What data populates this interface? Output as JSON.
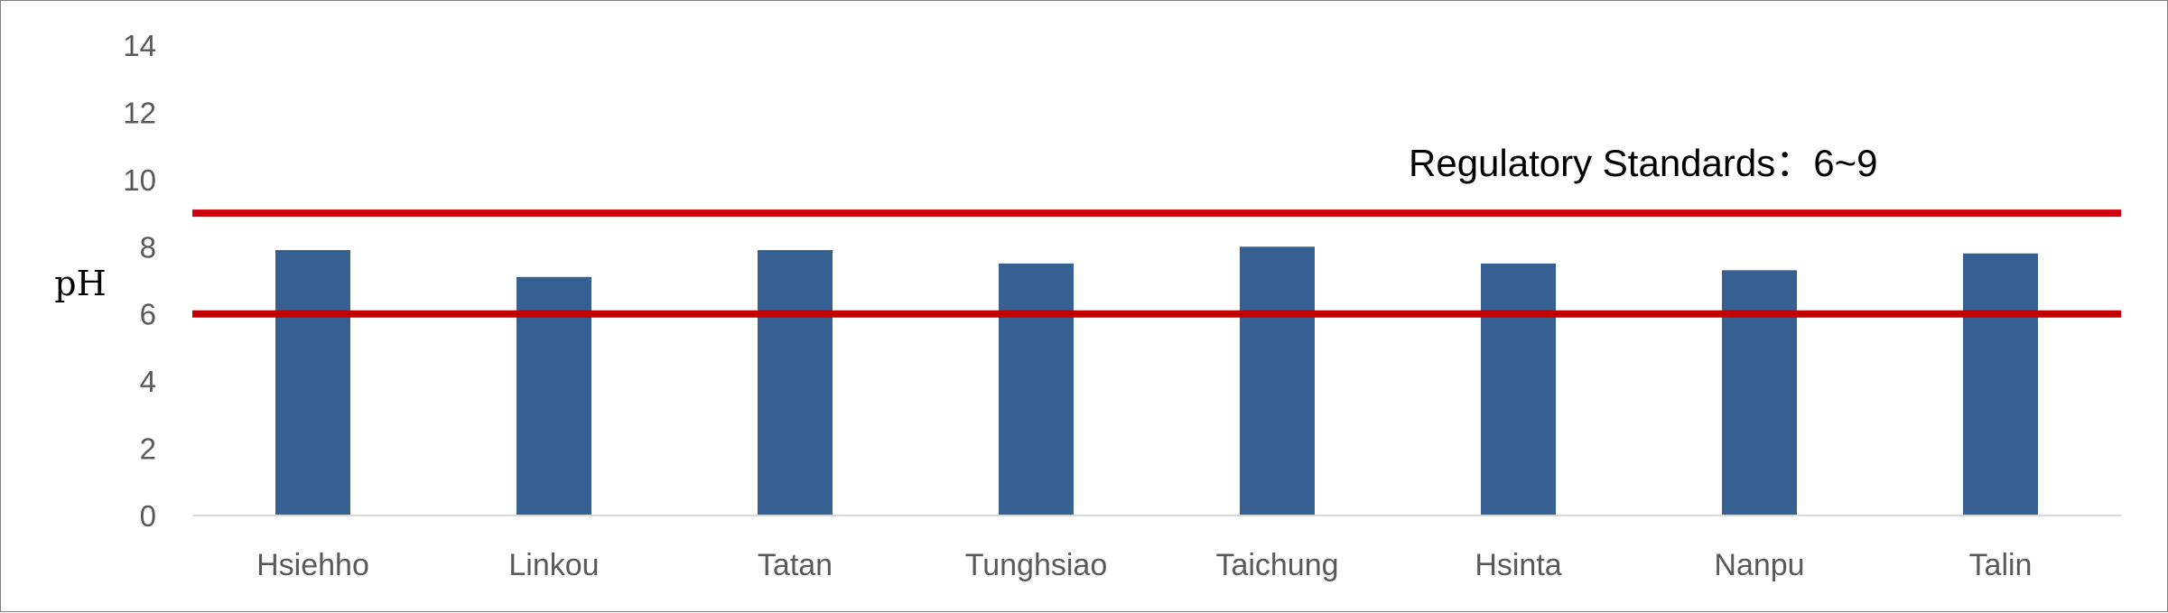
{
  "chart_data": {
    "type": "bar",
    "title": "",
    "xlabel": "",
    "ylabel": "pH",
    "ylim": [
      0,
      14
    ],
    "yticks": [
      0,
      2,
      4,
      6,
      8,
      10,
      12,
      14
    ],
    "grid": false,
    "legend": "none",
    "categories": [
      "Hsiehho",
      "Linkou",
      "Tatan",
      "Tunghsiao",
      "Taichung",
      "Hsinta",
      "Nanpu",
      "Talin"
    ],
    "series": [
      {
        "values": [
          7.9,
          7.1,
          7.9,
          7.5,
          8.0,
          7.5,
          7.3,
          7.8
        ]
      }
    ],
    "reference_lines": [
      {
        "y": 9,
        "color": "#d0000f"
      },
      {
        "y": 6,
        "color": "#c00000"
      }
    ],
    "annotation": "Regulatory Standards：6~9",
    "colors": {
      "bar": "#376092",
      "reference_line": "#cc0000",
      "axis": "#d9d9d9",
      "tick_text": "#595959"
    }
  }
}
